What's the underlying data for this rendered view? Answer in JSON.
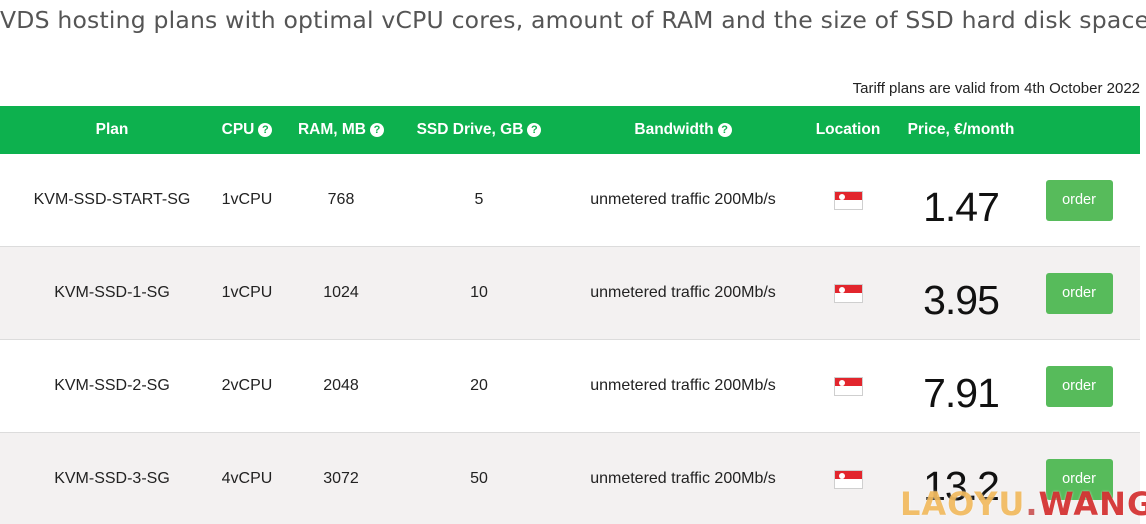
{
  "page": {
    "title": "VDS hosting plans with optimal vCPU cores, amount of RAM and the size of SSD hard disk space",
    "tariff_note": "Tariff plans are valid from 4th October 2022"
  },
  "table": {
    "headers": {
      "plan": "Plan",
      "cpu": "CPU",
      "ram": "RAM, MB",
      "ssd": "SSD Drive, GB",
      "bandwidth": "Bandwidth",
      "location": "Location",
      "price": "Price, €/month"
    },
    "help_glyph": "?",
    "order_label": "order",
    "rows": [
      {
        "plan": "KVM-SSD-START-SG",
        "cpu": "1vCPU",
        "ram": "768",
        "ssd": "5",
        "bandwidth": "unmetered traffic 200Mb/s",
        "location_icon": "singapore-flag-icon",
        "price": "1.47"
      },
      {
        "plan": "KVM-SSD-1-SG",
        "cpu": "1vCPU",
        "ram": "1024",
        "ssd": "10",
        "bandwidth": "unmetered traffic 200Mb/s",
        "location_icon": "singapore-flag-icon",
        "price": "3.95"
      },
      {
        "plan": "KVM-SSD-2-SG",
        "cpu": "2vCPU",
        "ram": "2048",
        "ssd": "20",
        "bandwidth": "unmetered traffic 200Mb/s",
        "location_icon": "singapore-flag-icon",
        "price": "7.91"
      },
      {
        "plan": "KVM-SSD-3-SG",
        "cpu": "4vCPU",
        "ram": "3072",
        "ssd": "50",
        "bandwidth": "unmetered traffic 200Mb/s",
        "location_icon": "singapore-flag-icon",
        "price": "13.2"
      }
    ]
  },
  "watermark": {
    "part_a": "LAOYU",
    "dot": ".",
    "part_b": "WANG"
  },
  "colors": {
    "header_green": "#0db14e",
    "order_green": "#57bb5b",
    "alt_row": "#f3f1f1",
    "flag_red": "#e2262d"
  }
}
